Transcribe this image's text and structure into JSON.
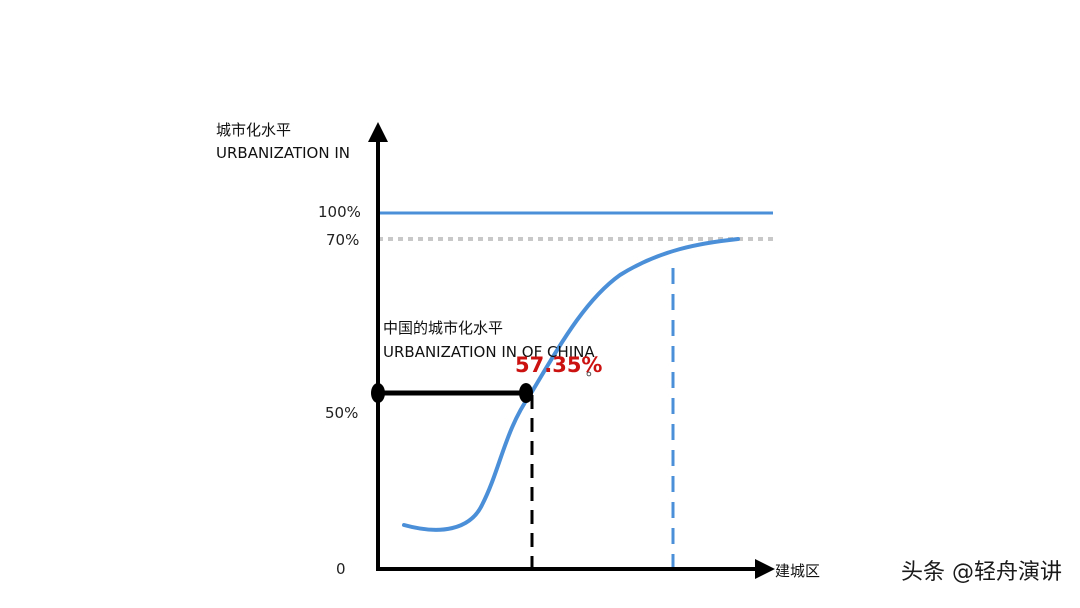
{
  "y_axis": {
    "title_cn": "城市化水平",
    "title_en": "URBANIZATION IN",
    "ticks": [
      "100%",
      "70%",
      "50%",
      "0"
    ]
  },
  "x_axis": {
    "title": "建城区"
  },
  "china_annotation": {
    "title_cn": "中国的城市化水平",
    "title_en": "URBANIZATION IN OF CHINA",
    "value": "57.35%",
    "suffix": "。"
  },
  "watermark": "头条 @轻舟演讲",
  "colors": {
    "axis": "#000000",
    "curve": "#4a8fd8",
    "ceiling_line": "#4a8fd8",
    "saturation_line": "#c8c8c8",
    "highlight_value": "#cc1111",
    "china_marker": "#000000"
  }
}
